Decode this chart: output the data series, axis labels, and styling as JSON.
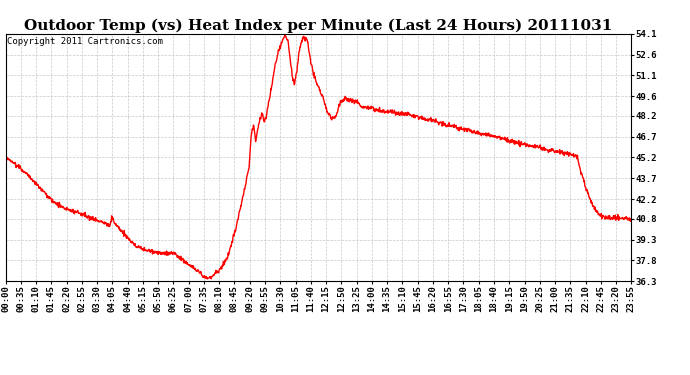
{
  "title": "Outdoor Temp (vs) Heat Index per Minute (Last 24 Hours) 20111031",
  "copyright": "Copyright 2011 Cartronics.com",
  "line_color": "#ff0000",
  "background_color": "#ffffff",
  "grid_color": "#bbbbbb",
  "yticks": [
    36.3,
    37.8,
    39.3,
    40.8,
    42.2,
    43.7,
    45.2,
    46.7,
    48.2,
    49.6,
    51.1,
    52.6,
    54.1
  ],
  "ylim": [
    36.3,
    54.1
  ],
  "xtick_labels": [
    "00:00",
    "00:35",
    "01:10",
    "01:45",
    "02:20",
    "02:55",
    "03:30",
    "04:05",
    "04:40",
    "05:15",
    "05:50",
    "06:25",
    "07:00",
    "07:35",
    "08:10",
    "08:45",
    "09:20",
    "09:55",
    "10:30",
    "11:05",
    "11:40",
    "12:15",
    "12:50",
    "13:25",
    "14:00",
    "14:35",
    "15:10",
    "15:45",
    "16:20",
    "16:55",
    "17:30",
    "18:05",
    "18:40",
    "19:15",
    "19:50",
    "20:25",
    "21:00",
    "21:35",
    "22:10",
    "22:45",
    "23:20",
    "23:55"
  ],
  "title_fontsize": 11,
  "copyright_fontsize": 6.5,
  "tick_fontsize": 6.5,
  "line_width": 1.0,
  "keypoints": [
    [
      0,
      45.2
    ],
    [
      20,
      44.8
    ],
    [
      50,
      44.0
    ],
    [
      80,
      43.0
    ],
    [
      110,
      42.0
    ],
    [
      140,
      41.5
    ],
    [
      170,
      41.2
    ],
    [
      200,
      40.8
    ],
    [
      230,
      40.5
    ],
    [
      240,
      40.3
    ],
    [
      245,
      41.0
    ],
    [
      250,
      40.5
    ],
    [
      260,
      40.2
    ],
    [
      270,
      39.8
    ],
    [
      300,
      38.8
    ],
    [
      330,
      38.5
    ],
    [
      360,
      38.3
    ],
    [
      390,
      38.3
    ],
    [
      400,
      38.0
    ],
    [
      410,
      37.8
    ],
    [
      420,
      37.5
    ],
    [
      430,
      37.3
    ],
    [
      440,
      37.1
    ],
    [
      450,
      36.8
    ],
    [
      455,
      36.6
    ],
    [
      460,
      36.5
    ],
    [
      465,
      36.5
    ],
    [
      470,
      36.6
    ],
    [
      475,
      36.6
    ],
    [
      480,
      36.8
    ],
    [
      490,
      37.0
    ],
    [
      500,
      37.5
    ],
    [
      510,
      38.0
    ],
    [
      520,
      39.0
    ],
    [
      530,
      40.2
    ],
    [
      540,
      41.5
    ],
    [
      550,
      43.0
    ],
    [
      560,
      44.5
    ],
    [
      565,
      46.8
    ],
    [
      570,
      47.5
    ],
    [
      575,
      46.5
    ],
    [
      580,
      47.2
    ],
    [
      585,
      48.0
    ],
    [
      590,
      48.5
    ],
    [
      595,
      47.8
    ],
    [
      600,
      48.2
    ],
    [
      610,
      50.0
    ],
    [
      620,
      51.8
    ],
    [
      625,
      52.5
    ],
    [
      630,
      53.0
    ],
    [
      635,
      53.5
    ],
    [
      640,
      53.8
    ],
    [
      645,
      54.0
    ],
    [
      650,
      53.5
    ],
    [
      655,
      52.2
    ],
    [
      660,
      51.0
    ],
    [
      665,
      50.5
    ],
    [
      670,
      51.5
    ],
    [
      675,
      52.8
    ],
    [
      680,
      53.5
    ],
    [
      685,
      53.8
    ],
    [
      690,
      53.8
    ],
    [
      695,
      53.5
    ],
    [
      700,
      52.5
    ],
    [
      710,
      51.0
    ],
    [
      720,
      50.2
    ],
    [
      730,
      49.5
    ],
    [
      740,
      48.5
    ],
    [
      750,
      48.0
    ],
    [
      760,
      48.2
    ],
    [
      770,
      49.2
    ],
    [
      780,
      49.5
    ],
    [
      790,
      49.3
    ],
    [
      800,
      49.3
    ],
    [
      810,
      49.2
    ],
    [
      820,
      48.8
    ],
    [
      840,
      48.8
    ],
    [
      860,
      48.5
    ],
    [
      880,
      48.5
    ],
    [
      900,
      48.4
    ],
    [
      930,
      48.3
    ],
    [
      960,
      48.0
    ],
    [
      990,
      47.8
    ],
    [
      1020,
      47.5
    ],
    [
      1050,
      47.3
    ],
    [
      1080,
      47.0
    ],
    [
      1110,
      46.8
    ],
    [
      1140,
      46.6
    ],
    [
      1170,
      46.3
    ],
    [
      1200,
      46.1
    ],
    [
      1230,
      45.9
    ],
    [
      1250,
      45.7
    ],
    [
      1270,
      45.6
    ],
    [
      1290,
      45.5
    ],
    [
      1300,
      45.4
    ],
    [
      1310,
      45.3
    ],
    [
      1315,
      45.2
    ],
    [
      1320,
      44.5
    ],
    [
      1330,
      43.5
    ],
    [
      1340,
      42.5
    ],
    [
      1350,
      41.8
    ],
    [
      1360,
      41.2
    ],
    [
      1370,
      41.0
    ],
    [
      1380,
      40.9
    ],
    [
      1390,
      40.9
    ],
    [
      1400,
      40.85
    ],
    [
      1420,
      40.82
    ],
    [
      1439,
      40.8
    ]
  ]
}
